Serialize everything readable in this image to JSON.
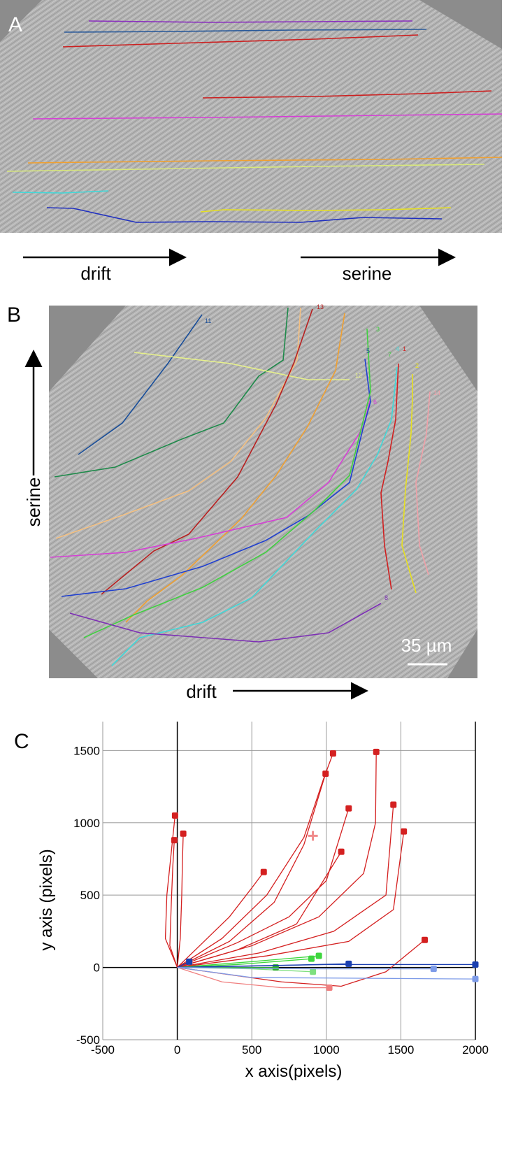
{
  "panel_labels": [
    "A",
    "B",
    "C"
  ],
  "panel_a": {
    "arrow_labels": [
      "drift",
      "serine"
    ]
  },
  "panel_b": {
    "vertical_label": "serine",
    "horizontal_label": "drift",
    "scale_bar": "35 µm",
    "track_labels": [
      "11",
      "13",
      "3",
      "5",
      "4",
      "1",
      "2",
      "14",
      "12",
      "6",
      "7",
      "8"
    ]
  },
  "chart_data": {
    "type": "line",
    "x_label": "x axis(pixels)",
    "y_label": "y axis (pixels)",
    "xlim": [
      -500,
      2000
    ],
    "ylim": [
      -500,
      1700
    ],
    "xticks": [
      -500,
      0,
      500,
      1000,
      1500,
      2000
    ],
    "yticks": [
      -500,
      0,
      500,
      1000,
      1500
    ],
    "grid": true,
    "series": [
      {
        "color": "#d42020",
        "x": [
          0,
          -80,
          -70,
          -40,
          -15
        ],
        "y": [
          0,
          200,
          500,
          800,
          1050
        ]
      },
      {
        "color": "#d42020",
        "x": [
          0,
          -50,
          -40,
          -30,
          -20
        ],
        "y": [
          0,
          150,
          450,
          700,
          880
        ]
      },
      {
        "color": "#d42020",
        "x": [
          0,
          20,
          30,
          35,
          40
        ],
        "y": [
          0,
          200,
          500,
          750,
          925
        ]
      },
      {
        "color": "#d42020",
        "x": [
          0,
          150,
          350,
          500,
          580
        ],
        "y": [
          0,
          150,
          350,
          550,
          660
        ]
      },
      {
        "color": "#d42020",
        "x": [
          0,
          300,
          600,
          850,
          980,
          1045
        ],
        "y": [
          0,
          200,
          500,
          900,
          1300,
          1480
        ]
      },
      {
        "color": "#d42020",
        "x": [
          0,
          350,
          650,
          850,
          995
        ],
        "y": [
          0,
          180,
          450,
          850,
          1340
        ]
      },
      {
        "color": "#d42020",
        "x": [
          0,
          400,
          750,
          1000,
          1150
        ],
        "y": [
          0,
          170,
          350,
          600,
          1100
        ]
      },
      {
        "color": "#d42020",
        "x": [
          0,
          400,
          800,
          1100
        ],
        "y": [
          0,
          120,
          300,
          800
        ]
      },
      {
        "color": "#d42020",
        "x": [
          0,
          500,
          950,
          1250,
          1330,
          1335
        ],
        "y": [
          0,
          150,
          350,
          650,
          1000,
          1490
        ]
      },
      {
        "color": "#d42020",
        "x": [
          0,
          550,
          1050,
          1400,
          1450
        ],
        "y": [
          0,
          100,
          250,
          500,
          1125
        ]
      },
      {
        "color": "#d42020",
        "x": [
          0,
          600,
          1150,
          1450,
          1520
        ],
        "y": [
          0,
          80,
          180,
          400,
          940
        ]
      },
      {
        "color": "#d42020",
        "x": [
          0,
          700,
          1100,
          1400,
          1660
        ],
        "y": [
          0,
          -100,
          -130,
          -30,
          190
        ]
      },
      {
        "color": "#f07f7f",
        "x": [
          0,
          300,
          700,
          1020
        ],
        "y": [
          0,
          -100,
          -140,
          -140
        ]
      },
      {
        "color": "#3ed63e",
        "x": [
          0,
          500,
          950
        ],
        "y": [
          0,
          40,
          80
        ]
      },
      {
        "color": "#3ed63e",
        "x": [
          0,
          400,
          900
        ],
        "y": [
          0,
          20,
          60
        ]
      },
      {
        "color": "#7fe07f",
        "x": [
          0,
          500,
          910
        ],
        "y": [
          0,
          -10,
          -30
        ]
      },
      {
        "color": "#2fae2f",
        "x": [
          0,
          300,
          660
        ],
        "y": [
          0,
          0,
          0
        ]
      },
      {
        "color": "#1a3fb0",
        "x": [
          0,
          1000,
          1600,
          2000
        ],
        "y": [
          0,
          20,
          20,
          20
        ]
      },
      {
        "color": "#1a3fb0",
        "x": [
          0,
          80
        ],
        "y": [
          0,
          40
        ]
      },
      {
        "color": "#1a3fb0",
        "x": [
          0,
          700,
          1150
        ],
        "y": [
          0,
          15,
          25
        ]
      },
      {
        "color": "#7d9be8",
        "x": [
          0,
          500,
          2000
        ],
        "y": [
          0,
          -70,
          -80
        ]
      },
      {
        "color": "#7d9be8",
        "x": [
          0,
          900,
          1720
        ],
        "y": [
          0,
          -10,
          -10
        ]
      },
      {
        "color": "#f08a8a",
        "marker": "plus",
        "x": [
          910
        ],
        "y": [
          910
        ]
      }
    ]
  }
}
